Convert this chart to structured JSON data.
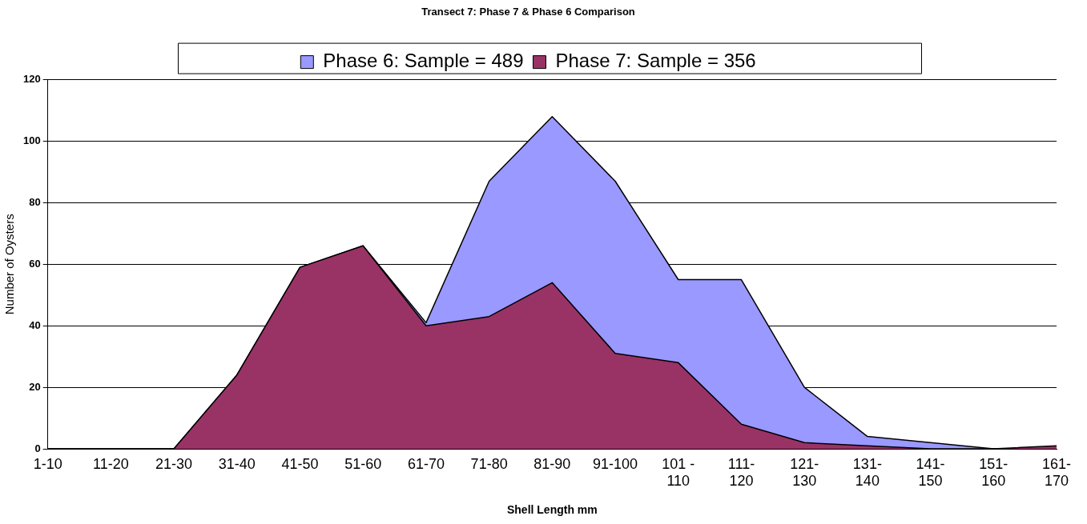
{
  "chart_data": {
    "type": "area",
    "title": "Transect 7: Phase 7 & Phase 6 Comparison",
    "xlabel": "Shell Length mm",
    "ylabel": "Number of Oysters",
    "categories": [
      "1-10",
      "11-20",
      "21-30",
      "31-40",
      "41-50",
      "51-60",
      "61-70",
      "71-80",
      "81-90",
      "91-100",
      "101 - 110",
      "111-120",
      "121-130",
      "131-140",
      "141-150",
      "151-160",
      "161-170"
    ],
    "series": [
      {
        "name": "Phase 6: Sample = 489",
        "color": "#9999ff",
        "values": [
          0,
          0,
          0,
          24,
          59,
          66,
          41,
          87,
          108,
          87,
          55,
          55,
          20,
          4,
          2,
          0,
          0
        ]
      },
      {
        "name": "Phase 7: Sample = 356",
        "color": "#993366",
        "values": [
          0,
          0,
          0,
          24,
          59,
          66,
          40,
          43,
          54,
          31,
          28,
          8,
          2,
          1,
          0,
          0,
          1
        ]
      }
    ],
    "ylim": [
      0,
      120
    ],
    "yticks": [
      0,
      20,
      40,
      60,
      80,
      100,
      120
    ],
    "grid": "y",
    "legend": "top"
  }
}
